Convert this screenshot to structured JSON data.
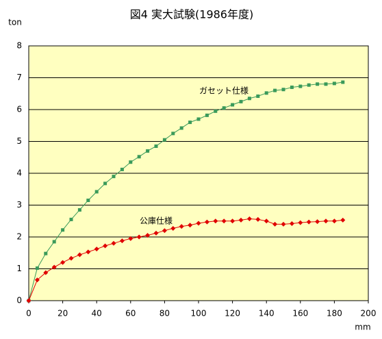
{
  "chart_data": {
    "type": "line",
    "title": "図4 実大試験(1986年度)",
    "x_label": "mm",
    "y_label": "ton",
    "xlim": [
      0,
      200
    ],
    "xticks": [
      0,
      20,
      40,
      60,
      80,
      100,
      120,
      140,
      160,
      180,
      200
    ],
    "ylim": [
      0,
      8
    ],
    "yticks": [
      0,
      1,
      2,
      3,
      4,
      5,
      6,
      7,
      8
    ],
    "grid": true,
    "background": "#ffffc0",
    "x": [
      0,
      5,
      10,
      15,
      20,
      25,
      30,
      35,
      40,
      45,
      50,
      55,
      60,
      65,
      70,
      75,
      80,
      85,
      90,
      95,
      100,
      105,
      110,
      115,
      120,
      125,
      130,
      135,
      140,
      145,
      150,
      155,
      160,
      165,
      170,
      175,
      180,
      185
    ],
    "series": [
      {
        "name": "ガセット仕様",
        "color": "#3a9a5a",
        "marker": "square",
        "values": [
          0,
          1.02,
          1.48,
          1.85,
          2.22,
          2.55,
          2.85,
          3.15,
          3.42,
          3.68,
          3.9,
          4.12,
          4.35,
          4.52,
          4.7,
          4.85,
          5.05,
          5.25,
          5.42,
          5.6,
          5.7,
          5.82,
          5.95,
          6.05,
          6.15,
          6.25,
          6.35,
          6.42,
          6.52,
          6.6,
          6.63,
          6.7,
          6.73,
          6.77,
          6.8,
          6.8,
          6.82,
          6.86
        ]
      },
      {
        "name": "公庫仕様",
        "color": "#e00000",
        "marker": "diamond",
        "values": [
          0,
          0.65,
          0.88,
          1.05,
          1.2,
          1.33,
          1.44,
          1.53,
          1.62,
          1.72,
          1.8,
          1.88,
          1.95,
          2.0,
          2.05,
          2.12,
          2.2,
          2.27,
          2.33,
          2.37,
          2.43,
          2.47,
          2.5,
          2.5,
          2.5,
          2.53,
          2.57,
          2.55,
          2.5,
          2.4,
          2.4,
          2.42,
          2.45,
          2.47,
          2.48,
          2.5,
          2.5,
          2.53
        ]
      }
    ]
  }
}
